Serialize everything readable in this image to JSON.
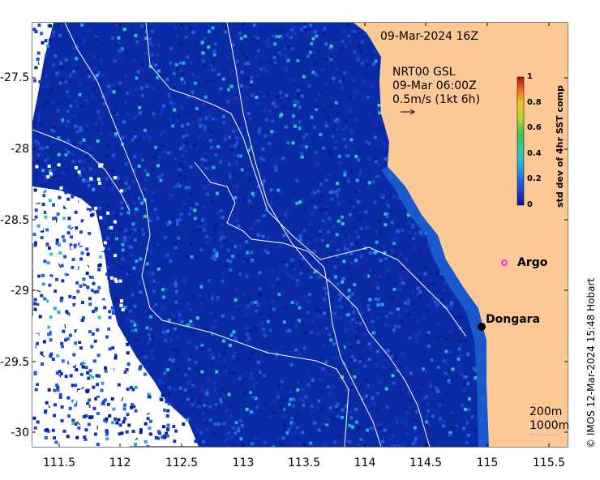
{
  "map": {
    "title_time": "09-Mar-2024 16Z",
    "current_info": [
      "NRT00 GSL",
      "09-Mar 06:00Z",
      "0.5m/s (1kt 6h)"
    ],
    "lat_ticks": [
      "-27.5",
      "-28",
      "-28.5",
      "-29",
      "-29.5",
      "-30"
    ],
    "lon_ticks": [
      "111.5",
      "112",
      "112.5",
      "113",
      "113.5",
      "114",
      "114.5",
      "115",
      "115.5"
    ],
    "lat_range": [
      -30.1,
      -27.1
    ],
    "lon_range": [
      111.3,
      115.6
    ],
    "places": [
      {
        "name": "Argo",
        "lon": 114.93,
        "lat": -28.83,
        "type": "float"
      },
      {
        "name": "Dongara",
        "lon": 114.93,
        "lat": -29.25,
        "type": "town"
      }
    ],
    "contours": [
      "200m",
      "1000m"
    ],
    "colorbar": {
      "title": "std dev of 4hr SST comp",
      "ticks": [
        "0",
        "0.2",
        "0.4",
        "0.6",
        "0.8",
        "1"
      ],
      "min": 0,
      "max": 1
    },
    "credit": "© IMOS 12-Mar-2024 15:48 Hobart",
    "colors": {
      "land": "#fcc996",
      "water_low": "#0b2aa5",
      "water_high": "#3ee0d2",
      "missing": "#ffffff",
      "argo": "#ff00ff",
      "town": "#000000"
    }
  }
}
